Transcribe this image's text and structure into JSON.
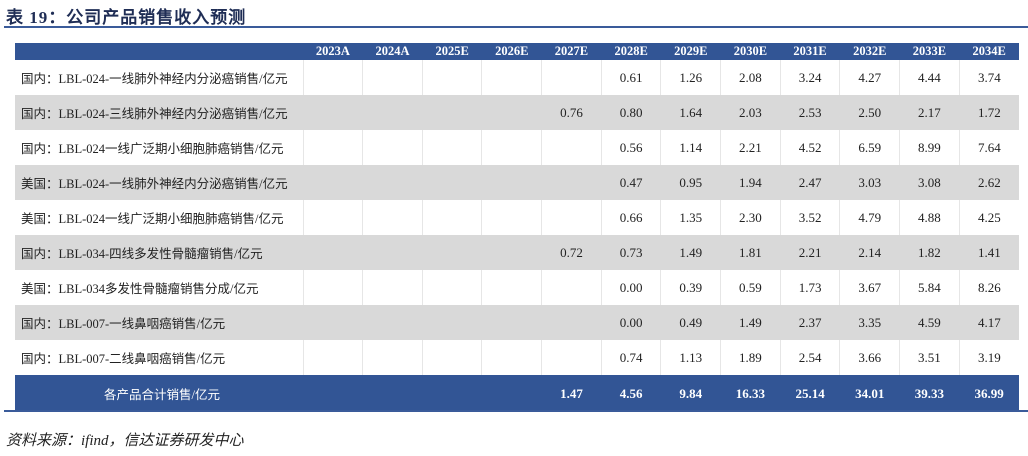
{
  "title": "表 19：公司产品销售收入预测",
  "columns": [
    "2023A",
    "2024A",
    "2025E",
    "2026E",
    "2027E",
    "2028E",
    "2029E",
    "2030E",
    "2031E",
    "2032E",
    "2033E",
    "2034E"
  ],
  "rows": [
    {
      "label": "国内：LBL-024-一线肺外神经内分泌癌销售/亿元",
      "values": [
        "",
        "",
        "",
        "",
        "",
        "0.61",
        "1.26",
        "2.08",
        "3.24",
        "4.27",
        "4.44",
        "3.74"
      ]
    },
    {
      "label": "国内：LBL-024-三线肺外神经内分泌癌销售/亿元",
      "values": [
        "",
        "",
        "",
        "",
        "0.76",
        "0.80",
        "1.64",
        "2.03",
        "2.53",
        "2.50",
        "2.17",
        "1.72"
      ]
    },
    {
      "label": "国内：LBL-024一线广泛期小细胞肺癌销售/亿元",
      "values": [
        "",
        "",
        "",
        "",
        "",
        "0.56",
        "1.14",
        "2.21",
        "4.52",
        "6.59",
        "8.99",
        "7.64"
      ]
    },
    {
      "label": "美国：LBL-024-一线肺外神经内分泌癌销售/亿元",
      "values": [
        "",
        "",
        "",
        "",
        "",
        "0.47",
        "0.95",
        "1.94",
        "2.47",
        "3.03",
        "3.08",
        "2.62"
      ]
    },
    {
      "label": "美国：LBL-024一线广泛期小细胞肺癌销售/亿元",
      "values": [
        "",
        "",
        "",
        "",
        "",
        "0.66",
        "1.35",
        "2.30",
        "3.52",
        "4.79",
        "4.88",
        "4.25"
      ]
    },
    {
      "label": "国内：LBL-034-四线多发性骨髓瘤销售/亿元",
      "values": [
        "",
        "",
        "",
        "",
        "0.72",
        "0.73",
        "1.49",
        "1.81",
        "2.21",
        "2.14",
        "1.82",
        "1.41"
      ]
    },
    {
      "label": "美国：LBL-034多发性骨髓瘤销售分成/亿元",
      "values": [
        "",
        "",
        "",
        "",
        "",
        "0.00",
        "0.39",
        "0.59",
        "1.73",
        "3.67",
        "5.84",
        "8.26"
      ]
    },
    {
      "label": "国内：LBL-007-一线鼻咽癌销售/亿元",
      "values": [
        "",
        "",
        "",
        "",
        "",
        "0.00",
        "0.49",
        "1.49",
        "2.37",
        "3.35",
        "4.59",
        "4.17"
      ]
    },
    {
      "label": "国内：LBL-007-二线鼻咽癌销售/亿元",
      "values": [
        "",
        "",
        "",
        "",
        "",
        "0.74",
        "1.13",
        "1.89",
        "2.54",
        "3.66",
        "3.51",
        "3.19"
      ]
    }
  ],
  "total": {
    "label": "各产品合计销售/亿元",
    "values": [
      "",
      "",
      "",
      "",
      "1.47",
      "4.56",
      "9.84",
      "16.33",
      "25.14",
      "34.01",
      "39.33",
      "36.99"
    ]
  },
  "source": "资料来源：ifind，信达证券研发中心"
}
